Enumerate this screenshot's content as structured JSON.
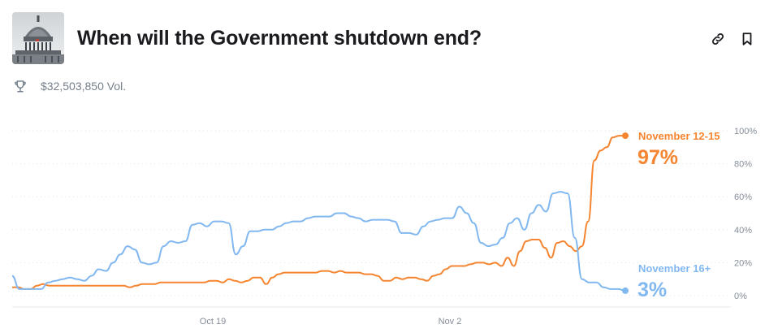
{
  "header": {
    "title": "When will the Government shutdown end?",
    "thumbnail_icon": "capitol-building-image",
    "link_icon": "link-icon",
    "bookmark_icon": "bookmark-icon"
  },
  "volume": {
    "icon": "trophy-icon",
    "text": "$32,503,850 Vol."
  },
  "chart_data": {
    "type": "line",
    "x_ticks": [
      "Oct 19",
      "Nov 2"
    ],
    "y_ticks": [
      "100%",
      "80%",
      "60%",
      "40%",
      "20%",
      "0%"
    ],
    "ylim": [
      0,
      100
    ],
    "grid": true,
    "series": [
      {
        "name": "November 12-15",
        "end_label": "97%",
        "color": "#f58530",
        "values": [
          5,
          5,
          4,
          4,
          6,
          7,
          6,
          6,
          6,
          6,
          6,
          6,
          6,
          6,
          6,
          6,
          6,
          6,
          6,
          5,
          6,
          7,
          7,
          7,
          8,
          8,
          8,
          8,
          8,
          8,
          8,
          8,
          9,
          9,
          8,
          10,
          9,
          8,
          9,
          11,
          11,
          7,
          11,
          13,
          14,
          14,
          14,
          14,
          14,
          14,
          15,
          15,
          14,
          15,
          14,
          14,
          14,
          13,
          13,
          12,
          9,
          9,
          11,
          10,
          11,
          11,
          10,
          9,
          12,
          13,
          16,
          18,
          18,
          18,
          19,
          20,
          20,
          19,
          20,
          18,
          23,
          18,
          27,
          33,
          34,
          34,
          29,
          23,
          32,
          33,
          30,
          27,
          30,
          45,
          82,
          88,
          90,
          96,
          97,
          97
        ],
        "color_name": "orange"
      },
      {
        "name": "November 16+",
        "end_label": "3%",
        "color": "#82b8f0",
        "values": [
          12,
          4,
          4,
          4,
          4,
          8,
          9,
          10,
          11,
          10,
          9,
          12,
          16,
          15,
          20,
          25,
          30,
          28,
          20,
          19,
          20,
          30,
          33,
          32,
          33,
          43,
          44,
          42,
          45,
          45,
          44,
          25,
          30,
          39,
          39,
          40,
          40,
          42,
          44,
          45,
          45,
          47,
          48,
          48,
          48,
          50,
          50,
          48,
          47,
          45,
          46,
          46,
          46,
          45,
          38,
          38,
          37,
          42,
          45,
          46,
          47,
          47,
          54,
          50,
          44,
          32,
          30,
          31,
          35,
          44,
          47,
          40,
          50,
          55,
          51,
          62,
          63,
          62,
          35,
          10,
          8,
          8,
          5,
          4,
          4,
          3
        ],
        "color_name": "blue"
      }
    ]
  }
}
